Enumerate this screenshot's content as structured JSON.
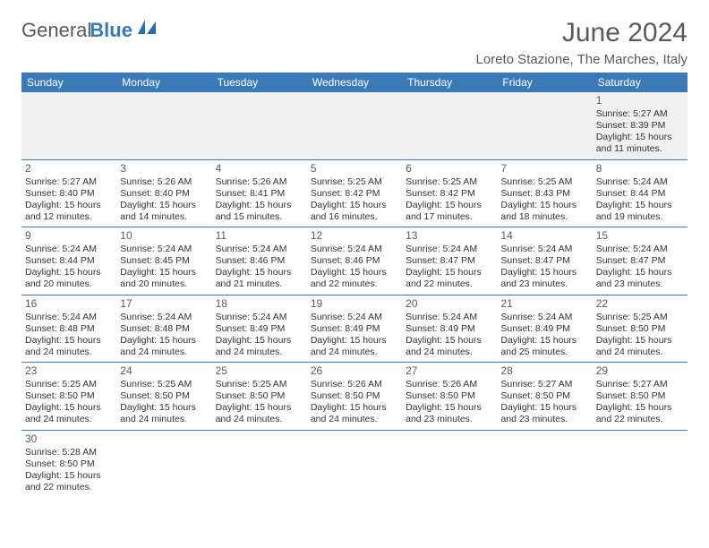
{
  "brand": {
    "general": "General",
    "blue": "Blue"
  },
  "title": "June 2024",
  "location": "Loreto Stazione, The Marches, Italy",
  "colors": {
    "header_bg": "#3a7ab8",
    "text": "#5a5a5a",
    "border": "#3a7ab8"
  },
  "day_headers": [
    "Sunday",
    "Monday",
    "Tuesday",
    "Wednesday",
    "Thursday",
    "Friday",
    "Saturday"
  ],
  "weeks": [
    [
      null,
      null,
      null,
      null,
      null,
      null,
      {
        "n": "1",
        "sr": "Sunrise: 5:27 AM",
        "ss": "Sunset: 8:39 PM",
        "dl1": "Daylight: 15 hours",
        "dl2": "and 11 minutes."
      }
    ],
    [
      {
        "n": "2",
        "sr": "Sunrise: 5:27 AM",
        "ss": "Sunset: 8:40 PM",
        "dl1": "Daylight: 15 hours",
        "dl2": "and 12 minutes."
      },
      {
        "n": "3",
        "sr": "Sunrise: 5:26 AM",
        "ss": "Sunset: 8:40 PM",
        "dl1": "Daylight: 15 hours",
        "dl2": "and 14 minutes."
      },
      {
        "n": "4",
        "sr": "Sunrise: 5:26 AM",
        "ss": "Sunset: 8:41 PM",
        "dl1": "Daylight: 15 hours",
        "dl2": "and 15 minutes."
      },
      {
        "n": "5",
        "sr": "Sunrise: 5:25 AM",
        "ss": "Sunset: 8:42 PM",
        "dl1": "Daylight: 15 hours",
        "dl2": "and 16 minutes."
      },
      {
        "n": "6",
        "sr": "Sunrise: 5:25 AM",
        "ss": "Sunset: 8:42 PM",
        "dl1": "Daylight: 15 hours",
        "dl2": "and 17 minutes."
      },
      {
        "n": "7",
        "sr": "Sunrise: 5:25 AM",
        "ss": "Sunset: 8:43 PM",
        "dl1": "Daylight: 15 hours",
        "dl2": "and 18 minutes."
      },
      {
        "n": "8",
        "sr": "Sunrise: 5:24 AM",
        "ss": "Sunset: 8:44 PM",
        "dl1": "Daylight: 15 hours",
        "dl2": "and 19 minutes."
      }
    ],
    [
      {
        "n": "9",
        "sr": "Sunrise: 5:24 AM",
        "ss": "Sunset: 8:44 PM",
        "dl1": "Daylight: 15 hours",
        "dl2": "and 20 minutes."
      },
      {
        "n": "10",
        "sr": "Sunrise: 5:24 AM",
        "ss": "Sunset: 8:45 PM",
        "dl1": "Daylight: 15 hours",
        "dl2": "and 20 minutes."
      },
      {
        "n": "11",
        "sr": "Sunrise: 5:24 AM",
        "ss": "Sunset: 8:46 PM",
        "dl1": "Daylight: 15 hours",
        "dl2": "and 21 minutes."
      },
      {
        "n": "12",
        "sr": "Sunrise: 5:24 AM",
        "ss": "Sunset: 8:46 PM",
        "dl1": "Daylight: 15 hours",
        "dl2": "and 22 minutes."
      },
      {
        "n": "13",
        "sr": "Sunrise: 5:24 AM",
        "ss": "Sunset: 8:47 PM",
        "dl1": "Daylight: 15 hours",
        "dl2": "and 22 minutes."
      },
      {
        "n": "14",
        "sr": "Sunrise: 5:24 AM",
        "ss": "Sunset: 8:47 PM",
        "dl1": "Daylight: 15 hours",
        "dl2": "and 23 minutes."
      },
      {
        "n": "15",
        "sr": "Sunrise: 5:24 AM",
        "ss": "Sunset: 8:47 PM",
        "dl1": "Daylight: 15 hours",
        "dl2": "and 23 minutes."
      }
    ],
    [
      {
        "n": "16",
        "sr": "Sunrise: 5:24 AM",
        "ss": "Sunset: 8:48 PM",
        "dl1": "Daylight: 15 hours",
        "dl2": "and 24 minutes."
      },
      {
        "n": "17",
        "sr": "Sunrise: 5:24 AM",
        "ss": "Sunset: 8:48 PM",
        "dl1": "Daylight: 15 hours",
        "dl2": "and 24 minutes."
      },
      {
        "n": "18",
        "sr": "Sunrise: 5:24 AM",
        "ss": "Sunset: 8:49 PM",
        "dl1": "Daylight: 15 hours",
        "dl2": "and 24 minutes."
      },
      {
        "n": "19",
        "sr": "Sunrise: 5:24 AM",
        "ss": "Sunset: 8:49 PM",
        "dl1": "Daylight: 15 hours",
        "dl2": "and 24 minutes."
      },
      {
        "n": "20",
        "sr": "Sunrise: 5:24 AM",
        "ss": "Sunset: 8:49 PM",
        "dl1": "Daylight: 15 hours",
        "dl2": "and 24 minutes."
      },
      {
        "n": "21",
        "sr": "Sunrise: 5:24 AM",
        "ss": "Sunset: 8:49 PM",
        "dl1": "Daylight: 15 hours",
        "dl2": "and 25 minutes."
      },
      {
        "n": "22",
        "sr": "Sunrise: 5:25 AM",
        "ss": "Sunset: 8:50 PM",
        "dl1": "Daylight: 15 hours",
        "dl2": "and 24 minutes."
      }
    ],
    [
      {
        "n": "23",
        "sr": "Sunrise: 5:25 AM",
        "ss": "Sunset: 8:50 PM",
        "dl1": "Daylight: 15 hours",
        "dl2": "and 24 minutes."
      },
      {
        "n": "24",
        "sr": "Sunrise: 5:25 AM",
        "ss": "Sunset: 8:50 PM",
        "dl1": "Daylight: 15 hours",
        "dl2": "and 24 minutes."
      },
      {
        "n": "25",
        "sr": "Sunrise: 5:25 AM",
        "ss": "Sunset: 8:50 PM",
        "dl1": "Daylight: 15 hours",
        "dl2": "and 24 minutes."
      },
      {
        "n": "26",
        "sr": "Sunrise: 5:26 AM",
        "ss": "Sunset: 8:50 PM",
        "dl1": "Daylight: 15 hours",
        "dl2": "and 24 minutes."
      },
      {
        "n": "27",
        "sr": "Sunrise: 5:26 AM",
        "ss": "Sunset: 8:50 PM",
        "dl1": "Daylight: 15 hours",
        "dl2": "and 23 minutes."
      },
      {
        "n": "28",
        "sr": "Sunrise: 5:27 AM",
        "ss": "Sunset: 8:50 PM",
        "dl1": "Daylight: 15 hours",
        "dl2": "and 23 minutes."
      },
      {
        "n": "29",
        "sr": "Sunrise: 5:27 AM",
        "ss": "Sunset: 8:50 PM",
        "dl1": "Daylight: 15 hours",
        "dl2": "and 22 minutes."
      }
    ],
    [
      {
        "n": "30",
        "sr": "Sunrise: 5:28 AM",
        "ss": "Sunset: 8:50 PM",
        "dl1": "Daylight: 15 hours",
        "dl2": "and 22 minutes."
      },
      null,
      null,
      null,
      null,
      null,
      null
    ]
  ]
}
